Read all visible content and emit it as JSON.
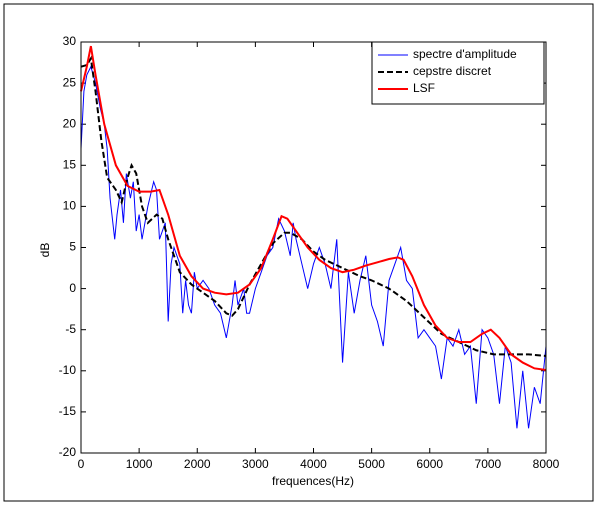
{
  "chart_data": {
    "type": "line",
    "xlabel": "frequences(Hz)",
    "ylabel": "dB",
    "xlim": [
      0,
      8000
    ],
    "xticks": [
      0,
      1000,
      2000,
      3000,
      4000,
      5000,
      6000,
      7000,
      8000
    ],
    "ylim": [
      -20,
      30
    ],
    "yticks": [
      -20,
      -15,
      -10,
      -5,
      0,
      5,
      10,
      15,
      20,
      25,
      30
    ],
    "grid": false,
    "legend": "top-right",
    "series": [
      {
        "name": "spectre d'amplitude",
        "color": "#0000ff",
        "dash": "solid",
        "x": [
          0,
          50,
          100,
          170,
          250,
          330,
          400,
          450,
          500,
          580,
          620,
          680,
          730,
          780,
          850,
          900,
          950,
          1000,
          1050,
          1100,
          1150,
          1250,
          1300,
          1350,
          1450,
          1500,
          1550,
          1600,
          1700,
          1750,
          1800,
          1850,
          1900,
          1950,
          2000,
          2100,
          2200,
          2300,
          2400,
          2500,
          2600,
          2650,
          2700,
          2800,
          2850,
          2900,
          3000,
          3100,
          3200,
          3300,
          3400,
          3500,
          3600,
          3650,
          3700,
          3800,
          3900,
          4000,
          4100,
          4200,
          4300,
          4400,
          4500,
          4600,
          4700,
          4800,
          4900,
          5000,
          5100,
          5200,
          5300,
          5400,
          5500,
          5600,
          5700,
          5800,
          5900,
          6000,
          6100,
          6200,
          6300,
          6400,
          6500,
          6600,
          6700,
          6800,
          6900,
          7000,
          7100,
          7200,
          7300,
          7400,
          7500,
          7600,
          7700,
          7800,
          7900,
          8000
        ],
        "values": [
          17,
          24,
          26,
          27,
          25,
          22,
          20,
          17,
          11,
          6,
          9,
          12,
          8,
          14,
          11,
          13,
          7,
          9,
          6,
          8,
          10,
          13,
          12,
          6,
          8,
          -4,
          3,
          5,
          3,
          -3,
          1,
          -2,
          -3,
          2,
          0,
          1,
          0,
          -2,
          -3,
          -6,
          -2,
          1,
          -2,
          0,
          -3,
          -3,
          0,
          2,
          4,
          5,
          8.5,
          7,
          4,
          8,
          6,
          3,
          0,
          3,
          5,
          3,
          0,
          6,
          -9,
          2,
          -3,
          1,
          4,
          -2,
          -4,
          -7,
          1,
          3,
          5,
          1,
          0,
          -6,
          -5,
          -6,
          -7,
          -11,
          -6,
          -7,
          -5,
          -8,
          -7,
          -14,
          -5,
          -6,
          -8,
          -14,
          -7,
          -9,
          -17,
          -10,
          -17,
          -12,
          -14,
          -7
        ]
      },
      {
        "name": "cepstre discret",
        "color": "#000000",
        "dash": "dashed",
        "x": [
          0,
          100,
          170,
          250,
          350,
          450,
          600,
          700,
          800,
          870,
          950,
          1050,
          1150,
          1300,
          1400,
          1500,
          1700,
          1900,
          2100,
          2300,
          2500,
          2600,
          2700,
          2900,
          3100,
          3300,
          3500,
          3600,
          3800,
          4000,
          4200,
          4500,
          4800,
          5000,
          5300,
          5600,
          5900,
          6200,
          6500,
          6800,
          7100,
          7400,
          7700,
          8000
        ],
        "values": [
          27,
          27.2,
          28,
          24,
          18,
          13.5,
          12,
          10.5,
          13.5,
          15,
          14,
          10,
          8,
          9,
          8.5,
          6,
          2,
          0.5,
          -0.5,
          -1.5,
          -3,
          -3.3,
          -2.5,
          0.5,
          3,
          5.5,
          6.8,
          6.8,
          6,
          4.5,
          3.5,
          2.5,
          1.5,
          1,
          0,
          -1.5,
          -3.5,
          -5.5,
          -6.5,
          -7.5,
          -8,
          -8,
          -8,
          -8.2
        ]
      },
      {
        "name": "LSF",
        "color": "#ff0000",
        "dash": "solid",
        "x": [
          0,
          100,
          170,
          250,
          400,
          600,
          800,
          1000,
          1200,
          1350,
          1500,
          1700,
          1900,
          2100,
          2300,
          2500,
          2700,
          2900,
          3100,
          3300,
          3450,
          3550,
          3700,
          3900,
          4100,
          4300,
          4500,
          4700,
          4900,
          5100,
          5300,
          5450,
          5550,
          5700,
          5900,
          6100,
          6300,
          6500,
          6700,
          6900,
          7050,
          7200,
          7400,
          7600,
          7800,
          8000
        ],
        "values": [
          24,
          27,
          29.5,
          26,
          20,
          15,
          12.5,
          11.8,
          11.8,
          12,
          9,
          4,
          1.5,
          0,
          -0.5,
          -0.7,
          -0.5,
          0.5,
          2.5,
          6,
          8.8,
          8.5,
          7,
          5,
          3.5,
          2.5,
          2,
          2.3,
          2.8,
          3.2,
          3.6,
          3.8,
          3.5,
          1.5,
          -2,
          -4.5,
          -6,
          -6.5,
          -6.5,
          -5.5,
          -5,
          -6,
          -8,
          -9,
          -9.7,
          -9.9
        ]
      }
    ]
  }
}
